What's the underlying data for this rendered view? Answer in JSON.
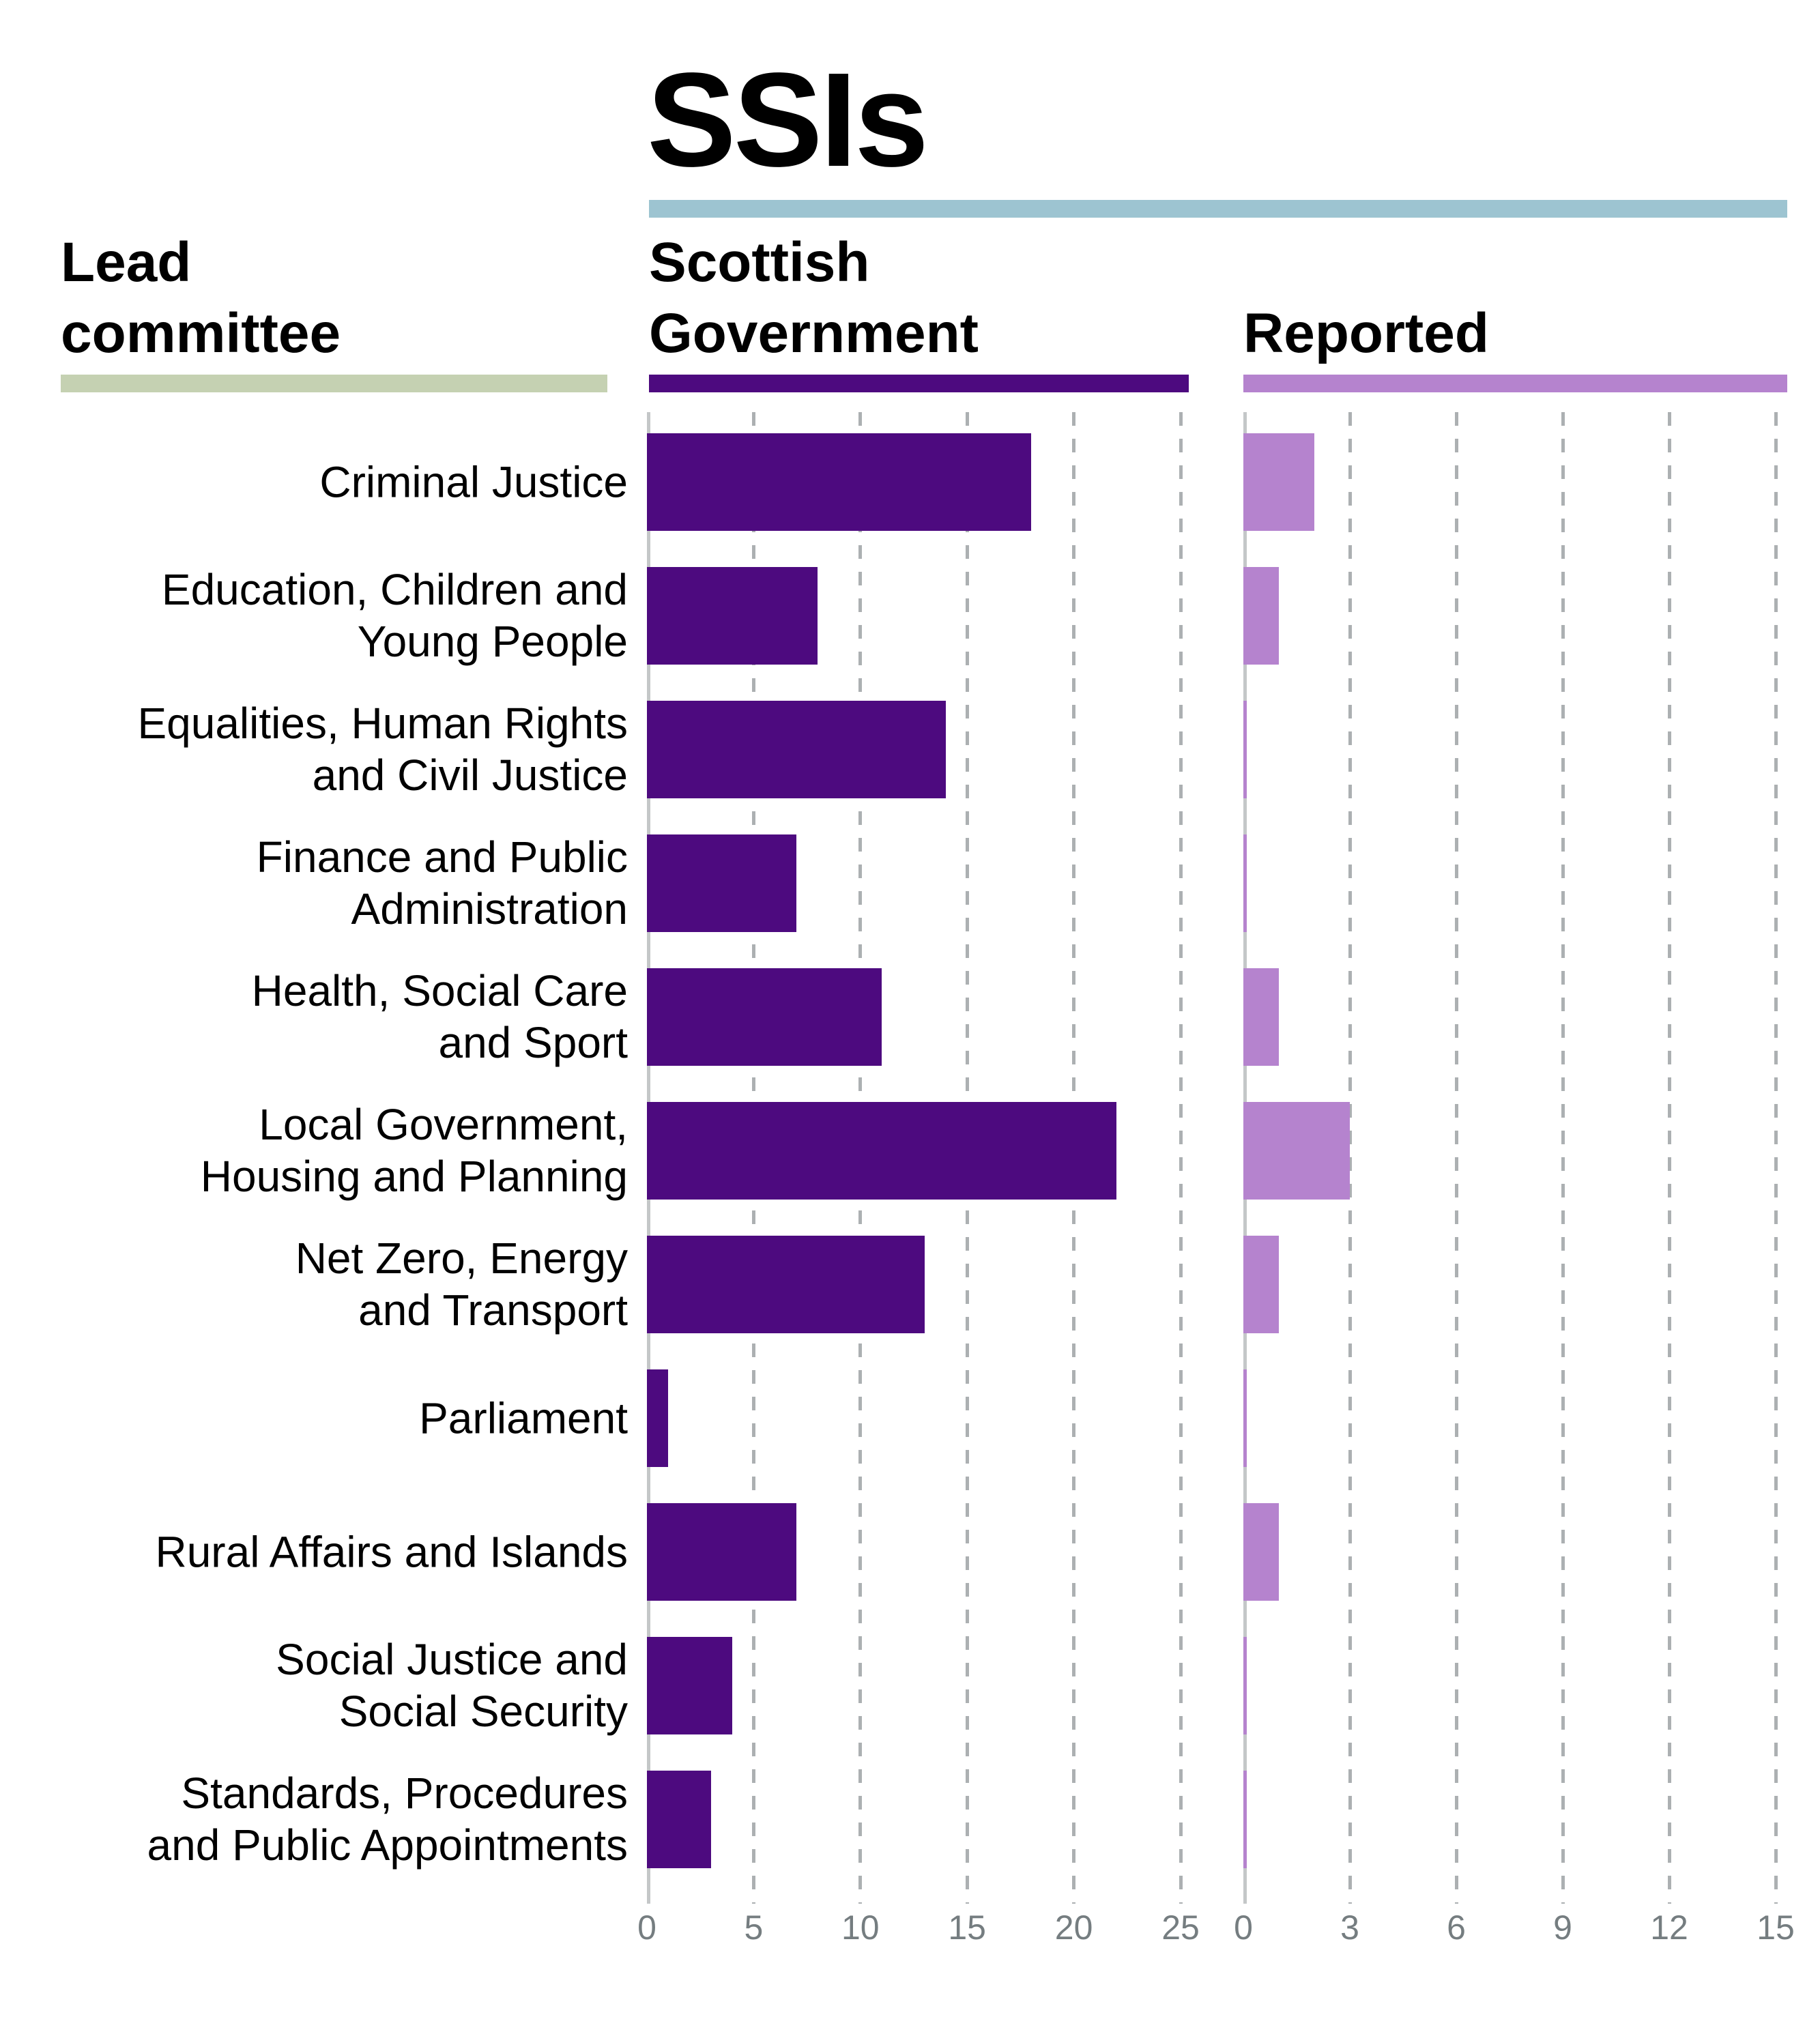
{
  "title": "SSIs",
  "column_headers": {
    "lead_committee": {
      "line1": "Lead",
      "line2": "committee"
    },
    "scottish_government": {
      "line1": "Scottish",
      "line2": "Government"
    },
    "reported": {
      "label": "Reported"
    }
  },
  "colors": {
    "title_rule_blue": "#9DC4D1",
    "lead_rule_green": "#C5D1B2",
    "sg_purple": "#4D0A7F",
    "reported_purple": "#B583CE",
    "gridline_gray": "#ACB0B2",
    "axis_gray": "#C4C7C8",
    "tick_text_gray": "#757D80",
    "text_black": "#000000"
  },
  "chart_data": {
    "type": "bar",
    "orientation": "horizontal",
    "title": "SSIs",
    "grid": "dashed-vertical",
    "legend_position": "column-headers-above",
    "row_label_column": "Lead committee",
    "categories": [
      [
        "Criminal Justice"
      ],
      [
        "Education, Children and",
        "Young People"
      ],
      [
        "Equalities, Human Rights",
        "and Civil Justice"
      ],
      [
        "Finance and Public",
        "Administration"
      ],
      [
        "Health, Social Care",
        "and Sport"
      ],
      [
        "Local Government,",
        "Housing and Planning"
      ],
      [
        "Net Zero, Energy",
        "and Transport"
      ],
      [
        "Parliament"
      ],
      [
        "Rural Affairs and Islands"
      ],
      [
        "Social Justice and",
        "Social Security"
      ],
      [
        "Standards, Procedures",
        "and Public Appointments"
      ]
    ],
    "series": [
      {
        "name": "Scottish Government",
        "color": "#4D0A7F",
        "values": [
          18,
          8,
          14,
          7,
          11,
          22,
          13,
          1,
          7,
          4,
          3
        ],
        "xlim": [
          0,
          25
        ],
        "ticks": [
          0,
          5,
          10,
          15,
          20,
          25
        ]
      },
      {
        "name": "Reported",
        "color": "#B583CE",
        "values": [
          2,
          1,
          0,
          0,
          1,
          3,
          1,
          0,
          1,
          0,
          0
        ],
        "xlim": [
          0,
          15
        ],
        "ticks": [
          0,
          3,
          6,
          9,
          12,
          15
        ]
      }
    ]
  }
}
